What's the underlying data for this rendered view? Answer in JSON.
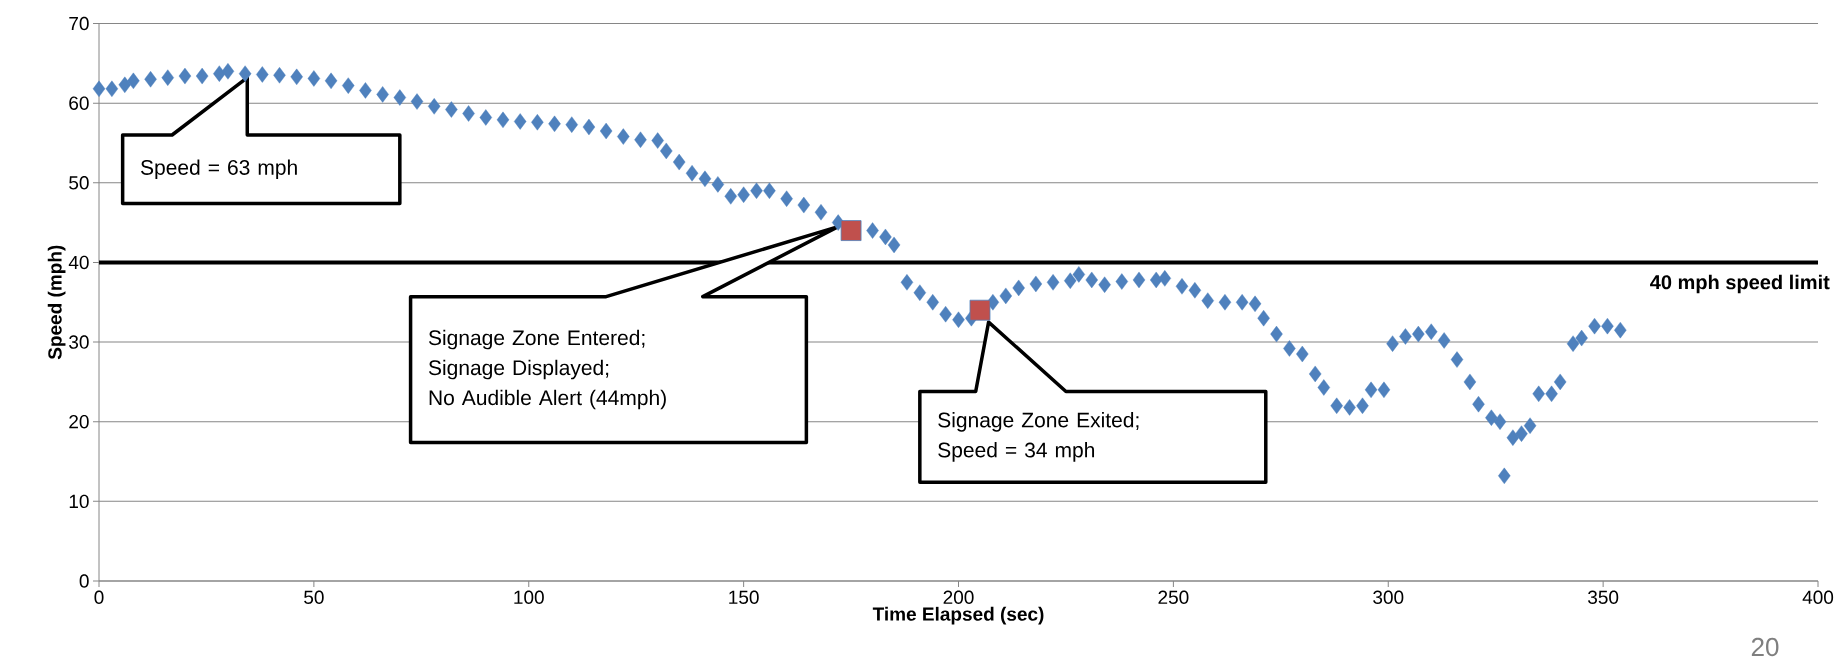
{
  "chart_data": {
    "type": "scatter",
    "xlabel": "Time Elapsed (sec)",
    "ylabel": "Speed (mph)",
    "xlim": [
      0,
      400
    ],
    "ylim": [
      0,
      70
    ],
    "xticks": [
      0,
      50,
      100,
      150,
      200,
      250,
      300,
      350,
      400
    ],
    "yticks": [
      0,
      10,
      20,
      30,
      40,
      50,
      60,
      70
    ],
    "grid": "y",
    "series": [
      {
        "color": "#4f81bd",
        "marker": "diamond",
        "x": [
          0,
          3,
          6,
          8,
          12,
          16,
          20,
          24,
          28,
          30,
          34,
          38,
          42,
          46,
          50,
          54,
          58,
          62,
          66,
          70,
          74,
          78,
          82,
          86,
          90,
          94,
          98,
          102,
          106,
          110,
          114,
          118,
          122,
          126,
          130,
          132,
          135,
          138,
          141,
          144,
          147,
          150,
          153,
          156,
          160,
          164,
          168,
          172,
          176,
          180,
          183,
          185,
          188,
          191,
          194,
          197,
          200,
          203,
          208,
          211,
          214,
          218,
          222,
          226,
          228,
          231,
          234,
          238,
          242,
          246,
          248,
          252,
          255,
          258,
          262,
          266,
          269,
          271,
          274,
          277,
          280,
          283,
          285,
          288,
          291,
          294,
          296,
          299,
          301,
          304,
          307,
          310,
          313,
          316,
          319,
          321,
          324,
          326,
          327,
          329,
          331,
          333,
          335,
          338,
          340,
          343,
          345,
          348,
          351,
          354
        ],
        "values": [
          61.8,
          61.8,
          62.3,
          62.8,
          63.0,
          63.2,
          63.4,
          63.4,
          63.7,
          64.0,
          63.7,
          63.6,
          63.5,
          63.3,
          63.1,
          62.8,
          62.2,
          61.6,
          61.1,
          60.7,
          60.2,
          59.6,
          59.2,
          58.7,
          58.2,
          57.9,
          57.7,
          57.6,
          57.4,
          57.3,
          57.0,
          56.5,
          55.8,
          55.4,
          55.3,
          54.0,
          52.6,
          51.2,
          50.5,
          49.8,
          48.3,
          48.5,
          49.0,
          49.0,
          48.0,
          47.2,
          46.3,
          45.0,
          null,
          44.0,
          43.2,
          42.2,
          37.5,
          36.2,
          35.0,
          33.5,
          32.8,
          33.0,
          35.0,
          35.8,
          36.8,
          37.3,
          37.5,
          37.7,
          38.5,
          37.8,
          37.2,
          37.6,
          37.8,
          37.8,
          38.0,
          37.0,
          36.5,
          35.2,
          35.0,
          35.0,
          34.8,
          33.0,
          31.0,
          29.2,
          28.5,
          26.0,
          24.3,
          22.0,
          21.8,
          22.0,
          24.0,
          24.0,
          29.8,
          30.7,
          31.0,
          31.3,
          30.2,
          27.8,
          25.0,
          22.2,
          20.5,
          20.0,
          13.2,
          18.0,
          18.5,
          19.5,
          23.5,
          23.5,
          25.0,
          29.8,
          30.5,
          32.0,
          32.0,
          31.5
        ]
      },
      {
        "color": "#c0504d",
        "marker": "square",
        "x": [
          175,
          205
        ],
        "values": [
          44,
          34
        ]
      }
    ],
    "ref_lines": [
      {
        "axis": "y",
        "value": 40,
        "label": "40 mph speed limit",
        "color": "#000000"
      }
    ],
    "annotations": [
      "Speed = 63 mph",
      "Signage Zone Entered;\nSignage Displayed;\nNo Audible Alert (44mph)",
      "Signage Zone Exited;\nSpeed = 34 mph",
      "20"
    ]
  }
}
